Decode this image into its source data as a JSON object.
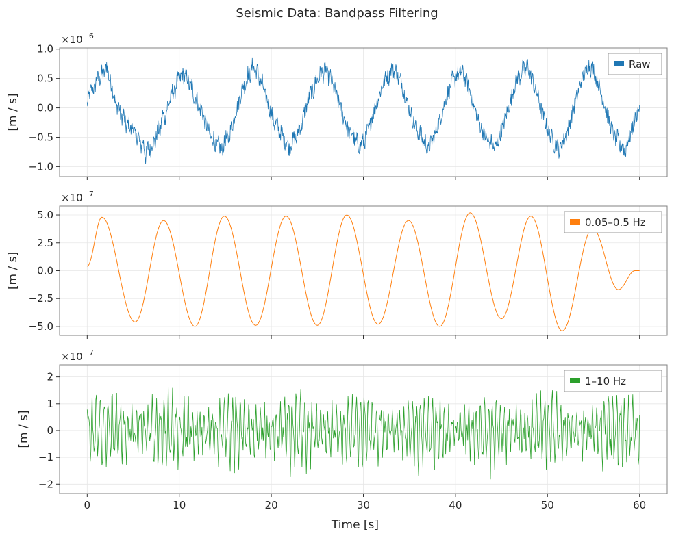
{
  "title": "Seismic Data: Bandpass Filtering",
  "chart_data": [
    {
      "type": "line",
      "ylabel": "[m / s]",
      "xlabel": "",
      "y_scale_label": "×10⁻⁶",
      "y_scale_base": "×10",
      "y_scale_exp": "−6",
      "xlim": [
        -3,
        63
      ],
      "ylim": [
        -1.17,
        1.02
      ],
      "x_ticks": [
        0,
        10,
        20,
        30,
        40,
        50,
        60
      ],
      "x_tick_labels": [],
      "y_ticks": [
        -1.0,
        -0.5,
        0.0,
        0.5,
        1.0
      ],
      "y_tick_labels": [
        "−1.0",
        "−0.5",
        "0.0",
        "0.5",
        "1.0"
      ],
      "grid": true,
      "legend_position": "top-right",
      "series": [
        {
          "name": "Raw",
          "color": "#1f77b4",
          "x_range": [
            0,
            60
          ],
          "values": [
            0.05,
            0.25,
            0.35,
            0.3,
            0.55,
            0.45,
            0.6,
            0.55,
            0.75,
            0.5,
            0.4,
            0.2,
            0.0,
            0.05,
            -0.2,
            -0.1,
            -0.35,
            -0.25,
            -0.4,
            -0.3,
            -0.55,
            -0.45,
            -0.7,
            -0.55,
            -0.85,
            -0.65,
            -0.75,
            -0.55,
            -0.6,
            -0.35,
            -0.4,
            -0.1,
            -0.2,
            0.05,
            0.1,
            0.3,
            0.25,
            0.5,
            0.45,
            0.6,
            0.5,
            0.55,
            0.35,
            0.4,
            0.15,
            0.2,
            -0.05,
            0.0,
            -0.2,
            -0.3,
            -0.4,
            -0.55,
            -0.5,
            -0.7,
            -0.6,
            -0.75,
            -0.65,
            -0.5,
            -0.55,
            -0.35,
            -0.25,
            -0.05,
            0.05,
            0.2,
            0.4,
            0.35,
            0.6,
            0.55,
            0.75,
            0.6,
            0.65,
            0.4,
            0.45,
            0.2,
            0.15,
            -0.05,
            -0.1,
            -0.3,
            -0.25,
            -0.45,
            -0.4,
            -0.6,
            -0.55,
            -0.7,
            -0.6,
            -0.5,
            -0.55,
            -0.3,
            -0.35,
            -0.1,
            0.0,
            0.15,
            0.3,
            0.25,
            0.5,
            0.45,
            0.65,
            0.55,
            0.7,
            0.5,
            0.55,
            0.35,
            0.3,
            0.1,
            0.05,
            -0.15,
            -0.2,
            -0.35,
            -0.45,
            -0.4,
            -0.6,
            -0.55,
            -0.7,
            -0.55,
            -0.6,
            -0.4,
            -0.35,
            -0.15,
            -0.05,
            0.1,
            0.2,
            0.35,
            0.45,
            0.55,
            0.5,
            0.7,
            0.6,
            0.65,
            0.45,
            0.5,
            0.25,
            0.2,
            0.0,
            -0.05,
            -0.25,
            -0.3,
            -0.45,
            -0.4,
            -0.6,
            -0.55,
            -0.75,
            -0.6,
            -0.55,
            -0.45,
            -0.3,
            -0.2,
            -0.05,
            0.1,
            0.25,
            0.3,
            0.5,
            0.45,
            0.6,
            0.55,
            0.65,
            0.5,
            0.45,
            0.3,
            0.2,
            0.0,
            -0.1,
            -0.25,
            -0.35,
            -0.45,
            -0.5,
            -0.6,
            -0.55,
            -0.7,
            -0.65,
            -0.55,
            -0.4,
            -0.3,
            -0.15,
            0.0,
            0.1,
            0.3,
            0.4,
            0.55,
            0.5,
            0.7,
            0.6,
            0.75,
            0.55,
            0.5,
            0.3,
            0.25,
            0.05,
            -0.1,
            -0.2,
            -0.35,
            -0.45,
            -0.5,
            -0.65,
            -0.6,
            -0.75,
            -0.6,
            -0.55,
            -0.45,
            -0.3,
            -0.15,
            0.0,
            0.15,
            0.3,
            0.45,
            0.55,
            0.6,
            0.75,
            0.65,
            0.7,
            0.5,
            0.45,
            0.25,
            0.15,
            0.0,
            -0.15,
            -0.3,
            -0.4,
            -0.55,
            -0.5,
            -0.7,
            -0.6,
            -0.8,
            -0.55,
            -0.5,
            -0.35,
            -0.2,
            -0.1,
            0.05
          ]
        }
      ]
    },
    {
      "type": "line",
      "ylabel": "[m / s]",
      "xlabel": "",
      "y_scale_label": "×10⁻⁷",
      "y_scale_base": "×10",
      "y_scale_exp": "−7",
      "xlim": [
        -3,
        63
      ],
      "ylim": [
        -5.8,
        5.8
      ],
      "x_ticks": [
        0,
        10,
        20,
        30,
        40,
        50,
        60
      ],
      "x_tick_labels": [],
      "y_ticks": [
        -5.0,
        -2.5,
        0.0,
        2.5,
        5.0
      ],
      "y_tick_labels": [
        "−5.0",
        "−2.5",
        "0.0",
        "2.5",
        "5.0"
      ],
      "grid": true,
      "legend_position": "top-right",
      "series": [
        {
          "name": "0.05–0.5 Hz",
          "color": "#ff7f0e",
          "peaks": [
            {
              "t": 0.0,
              "v": 0.4
            },
            {
              "t": 1.6,
              "v": 4.8
            },
            {
              "t": 5.2,
              "v": -4.6
            },
            {
              "t": 8.3,
              "v": 4.5
            },
            {
              "t": 11.7,
              "v": -5.0
            },
            {
              "t": 14.9,
              "v": 4.9
            },
            {
              "t": 18.3,
              "v": -4.9
            },
            {
              "t": 21.6,
              "v": 4.9
            },
            {
              "t": 25.0,
              "v": -4.9
            },
            {
              "t": 28.2,
              "v": 5.0
            },
            {
              "t": 31.6,
              "v": -4.8
            },
            {
              "t": 34.9,
              "v": 4.5
            },
            {
              "t": 38.3,
              "v": -5.0
            },
            {
              "t": 41.6,
              "v": 5.2
            },
            {
              "t": 45.0,
              "v": -4.3
            },
            {
              "t": 48.2,
              "v": 4.9
            },
            {
              "t": 51.6,
              "v": -5.4
            },
            {
              "t": 54.9,
              "v": 3.8
            },
            {
              "t": 57.7,
              "v": -1.7
            },
            {
              "t": 59.5,
              "v": 0.0
            },
            {
              "t": 60.0,
              "v": 0.0
            }
          ]
        }
      ]
    },
    {
      "type": "line",
      "ylabel": "[m / s]",
      "xlabel": "Time [s]",
      "y_scale_label": "×10⁻⁷",
      "y_scale_base": "×10",
      "y_scale_exp": "−7",
      "xlim": [
        -3,
        63
      ],
      "ylim": [
        -2.35,
        2.45
      ],
      "x_ticks": [
        0,
        10,
        20,
        30,
        40,
        50,
        60
      ],
      "x_tick_labels": [
        "0",
        "10",
        "20",
        "30",
        "40",
        "50",
        "60"
      ],
      "y_ticks": [
        -2,
        -1,
        0,
        1,
        2
      ],
      "y_tick_labels": [
        "−2",
        "−1",
        "0",
        "1",
        "2"
      ],
      "grid": true,
      "legend_position": "top-right",
      "series": [
        {
          "name": "1–10 Hz",
          "color": "#2ca02c",
          "x_range": [
            0,
            60
          ],
          "envelope": [
            1.6,
            2.1
          ],
          "samples": 900
        }
      ]
    }
  ]
}
